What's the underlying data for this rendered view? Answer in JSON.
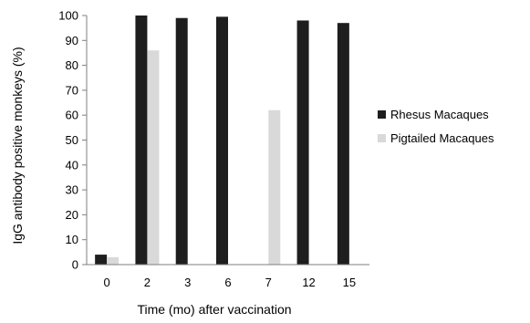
{
  "chart_data": {
    "type": "bar",
    "title": "",
    "xlabel": "Time (mo) after vaccination",
    "ylabel": "IgG antibody positive monkeys (%)",
    "ylim": [
      0,
      100
    ],
    "yticks": [
      0,
      10,
      20,
      30,
      40,
      50,
      60,
      70,
      80,
      90,
      100
    ],
    "grid": false,
    "legend_position": "right",
    "categories": [
      "0",
      "2",
      "3",
      "6",
      "7",
      "12",
      "15"
    ],
    "series": [
      {
        "name": "Rhesus Macaques",
        "color": "#1e1e1e",
        "values": [
          4,
          100,
          99,
          99.5,
          null,
          98,
          97
        ]
      },
      {
        "name": "Pigtailed Macaques",
        "color": "#d9d9d9",
        "values": [
          3,
          86,
          null,
          null,
          62,
          null,
          null
        ]
      }
    ]
  }
}
